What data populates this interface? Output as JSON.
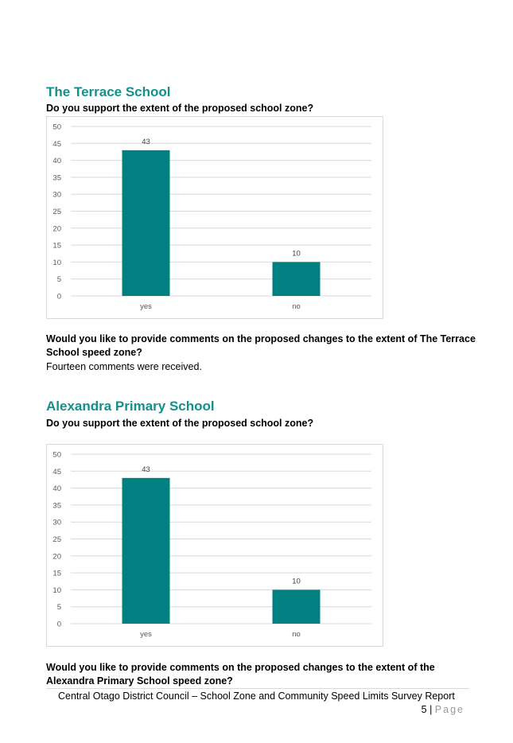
{
  "sections": [
    {
      "heading": "The Terrace School",
      "question": "Do you support the extent of the proposed school zone?",
      "comment_question": "Would you like to provide comments on the proposed changes to the extent of The Terrace School speed zone?",
      "comment_summary": "Fourteen comments were received."
    },
    {
      "heading": "Alexandra Primary School",
      "question": "Do you support the extent of the proposed school zone?",
      "comment_question": "Would you like to provide comments on the proposed changes to the extent of the Alexandra Primary School speed zone?"
    }
  ],
  "chart_data": [
    {
      "type": "bar",
      "categories": [
        "yes",
        "no"
      ],
      "values": [
        43,
        10
      ],
      "data_labels": [
        "43",
        "10"
      ],
      "ylim": [
        0,
        50
      ],
      "yticks": [
        0,
        5,
        10,
        15,
        20,
        25,
        30,
        35,
        40,
        45,
        50
      ],
      "bar_color": "#008080",
      "grid": true
    },
    {
      "type": "bar",
      "categories": [
        "yes",
        "no"
      ],
      "values": [
        43,
        10
      ],
      "data_labels": [
        "43",
        "10"
      ],
      "ylim": [
        0,
        50
      ],
      "yticks": [
        0,
        5,
        10,
        15,
        20,
        25,
        30,
        35,
        40,
        45,
        50
      ],
      "bar_color": "#008080",
      "grid": true
    }
  ],
  "footer": {
    "text": "Central Otago District Council – School Zone and Community Speed Limits Survey Report",
    "page_number": "5",
    "separator": "|",
    "page_word": "Page"
  }
}
